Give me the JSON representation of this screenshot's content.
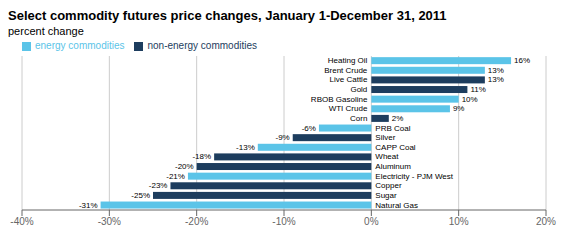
{
  "chart_data": {
    "type": "bar",
    "orientation": "horizontal",
    "title": "Select commodity futures price changes, January 1-December 31, 2011",
    "subtitle": "percent change",
    "categories": [
      "Natural Gas",
      "Sugar",
      "Copper",
      "Electricity - PJM West",
      "Aluminum",
      "Wheat",
      "CAPP Coal",
      "Silver",
      "PRB Coal",
      "Corn",
      "WTI Crude",
      "RBOB Gasoline",
      "Gold",
      "Live Cattle",
      "Brent Crude",
      "Heating Oil"
    ],
    "series": [
      {
        "name": "energy commodities",
        "color": "#5bc4e8",
        "values": [
          -31,
          null,
          null,
          -21,
          null,
          null,
          -13,
          null,
          -6,
          null,
          9,
          10,
          null,
          null,
          13,
          16
        ],
        "value_labels": [
          "-31%",
          null,
          null,
          "-21%",
          null,
          null,
          "-13%",
          null,
          "-6%",
          null,
          "9%",
          "10%",
          null,
          null,
          "13%",
          "16%"
        ]
      },
      {
        "name": "non-energy commodities",
        "color": "#1d3d5e",
        "values": [
          null,
          -25,
          -23,
          null,
          -20,
          -18,
          null,
          -9,
          null,
          2,
          null,
          null,
          11,
          13,
          null,
          null
        ],
        "value_labels": [
          null,
          "-25%",
          "-23%",
          null,
          "-20%",
          "-18%",
          null,
          "-9%",
          null,
          "2%",
          null,
          null,
          "11%",
          "13%",
          null,
          null
        ]
      }
    ],
    "stacked": true,
    "data_labels": true,
    "xlim": [
      -40,
      20
    ],
    "xticks": [
      {
        "value": -40,
        "label": "-40%"
      },
      {
        "value": -30,
        "label": "-30%"
      },
      {
        "value": -20,
        "label": "-20%"
      },
      {
        "value": -10,
        "label": "-10%"
      },
      {
        "value": 0,
        "label": "0%"
      },
      {
        "value": 10,
        "label": "10%"
      },
      {
        "value": 20,
        "label": "20%"
      }
    ],
    "grid": true,
    "legend": "upper left"
  }
}
